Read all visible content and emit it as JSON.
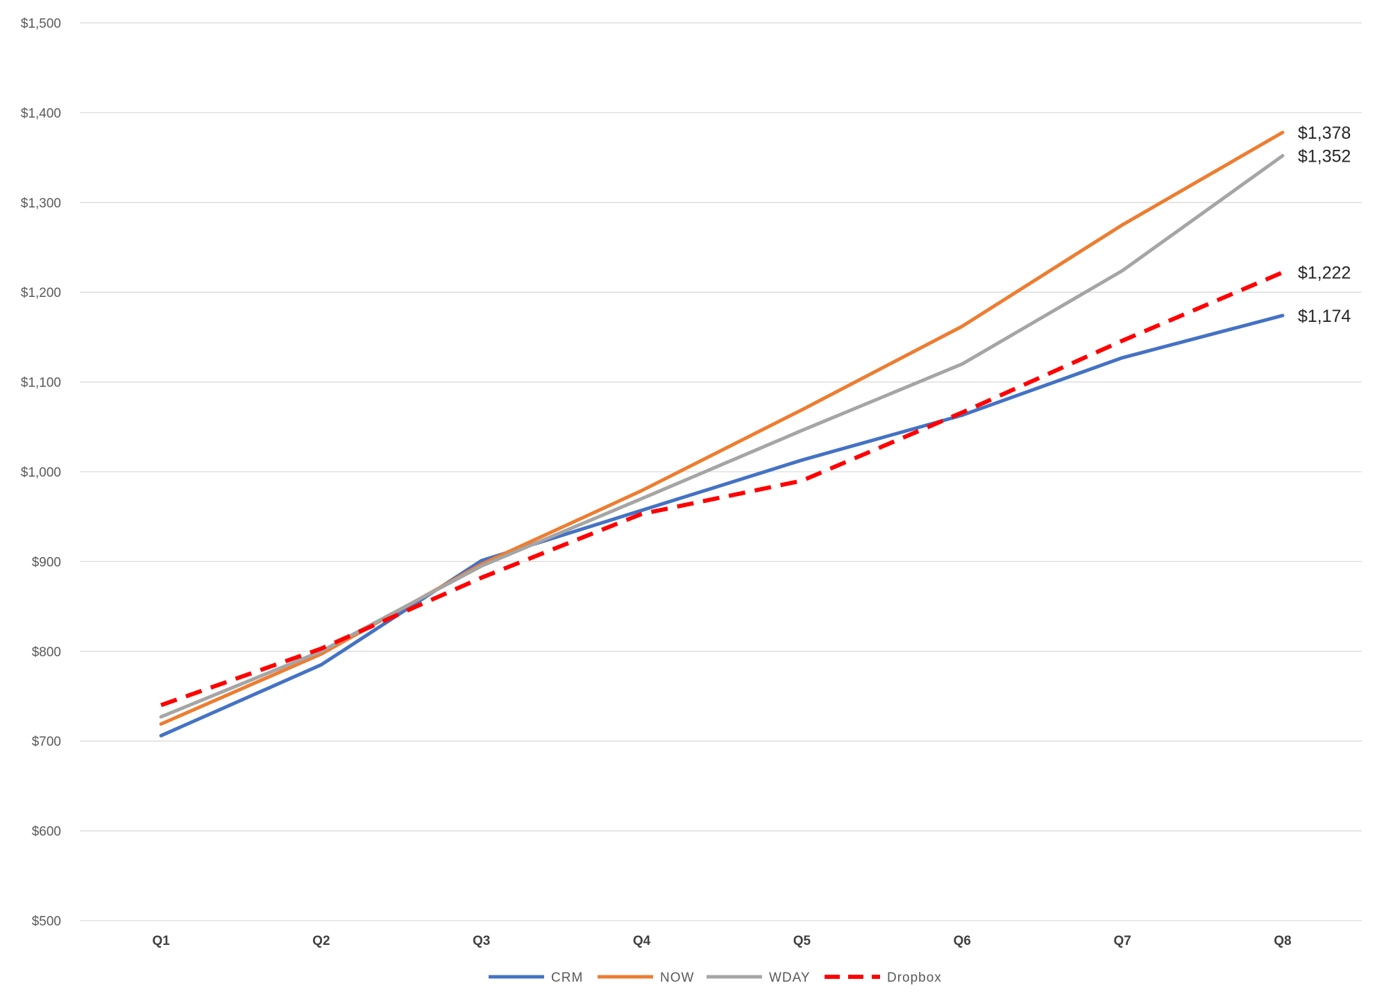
{
  "chart_data": {
    "type": "line",
    "title": "",
    "xlabel": "",
    "ylabel": "",
    "categories": [
      "Q1",
      "Q2",
      "Q3",
      "Q4",
      "Q5",
      "Q6",
      "Q7",
      "Q8"
    ],
    "ylim": [
      500,
      1500
    ],
    "yticks": [
      500,
      600,
      700,
      800,
      900,
      1000,
      1100,
      1200,
      1300,
      1400,
      1500
    ],
    "ytick_labels": [
      "$500",
      "$600",
      "$700",
      "$800",
      "$900",
      "$1,000",
      "$1,100",
      "$1,200",
      "$1,300",
      "$1,400",
      "$1,500"
    ],
    "grid": true,
    "legend_position": "bottom",
    "series": [
      {
        "name": "CRM",
        "color": "#4472c4",
        "dashed": false,
        "values": [
          706,
          785,
          901,
          957,
          1013,
          1063,
          1127,
          1174
        ],
        "end_label": "$1,174"
      },
      {
        "name": "NOW",
        "color": "#ed7d31",
        "dashed": false,
        "values": [
          719,
          797,
          897,
          979,
          1069,
          1162,
          1275,
          1378
        ],
        "end_label": "$1,378"
      },
      {
        "name": "WDAY",
        "color": "#a5a5a5",
        "dashed": false,
        "values": [
          727,
          800,
          895,
          970,
          1046,
          1120,
          1224,
          1352
        ],
        "end_label": "$1,352"
      },
      {
        "name": "Dropbox",
        "color": "#ff0000",
        "dashed": true,
        "values": [
          740,
          803,
          882,
          953,
          990,
          1066,
          1146,
          1222
        ],
        "end_label": "$1,222"
      }
    ]
  }
}
